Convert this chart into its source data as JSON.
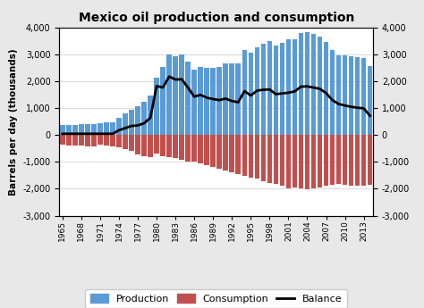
{
  "title": "Mexico oil production and consumption",
  "ylabel": "Barrels per day (thousands)",
  "years": [
    1965,
    1966,
    1967,
    1968,
    1969,
    1970,
    1971,
    1972,
    1973,
    1974,
    1975,
    1976,
    1977,
    1978,
    1979,
    1980,
    1981,
    1982,
    1983,
    1984,
    1985,
    1986,
    1987,
    1988,
    1989,
    1990,
    1991,
    1992,
    1993,
    1994,
    1995,
    1996,
    1997,
    1998,
    1999,
    2000,
    2001,
    2002,
    2003,
    2004,
    2005,
    2006,
    2007,
    2008,
    2009,
    2010,
    2011,
    2012,
    2013,
    2014
  ],
  "production": [
    362,
    375,
    388,
    400,
    413,
    425,
    440,
    460,
    490,
    650,
    800,
    940,
    1085,
    1230,
    1461,
    2129,
    2553,
    3001,
    2930,
    3000,
    2745,
    2433,
    2548,
    2512,
    2521,
    2553,
    2680,
    2668,
    2673,
    3170,
    3065,
    3285,
    3409,
    3500,
    3346,
    3450,
    3560,
    3585,
    3789,
    3825,
    3760,
    3684,
    3467,
    3165,
    2978,
    2958,
    2938,
    2910,
    2875,
    2570
  ],
  "consumption": [
    -362,
    -375,
    -388,
    -400,
    -413,
    -425,
    -360,
    -390,
    -420,
    -460,
    -520,
    -600,
    -710,
    -780,
    -810,
    -700,
    -780,
    -820,
    -860,
    -920,
    -980,
    -1000,
    -1050,
    -1120,
    -1180,
    -1250,
    -1320,
    -1400,
    -1450,
    -1530,
    -1590,
    -1630,
    -1720,
    -1800,
    -1820,
    -1900,
    -1980,
    -1960,
    -1985,
    -2010,
    -1990,
    -1960,
    -1900,
    -1860,
    -1820,
    -1855,
    -1885,
    -1890,
    -1880,
    -1850
  ],
  "balance": [
    50,
    50,
    50,
    50,
    50,
    50,
    50,
    50,
    50,
    180,
    260,
    340,
    360,
    440,
    640,
    1829,
    1773,
    2181,
    2070,
    2080,
    1765,
    1433,
    1498,
    1392,
    1341,
    1303,
    1360,
    1268,
    1223,
    1640,
    1475,
    1655,
    1689,
    1700,
    1526,
    1550,
    1580,
    1625,
    1804,
    1815,
    1770,
    1724,
    1567,
    1305,
    1158,
    1103,
    1053,
    1020,
    995,
    720
  ],
  "production_color": "#5b9bd5",
  "consumption_color": "#c0504d",
  "balance_color": "#000000",
  "bg_color": "#e8e8e8",
  "plot_bg_color": "#ffffff",
  "ylim": [
    -3000,
    4000
  ],
  "yticks": [
    -3000,
    -2000,
    -1000,
    0,
    1000,
    2000,
    3000,
    4000
  ],
  "xtick_years": [
    1965,
    1968,
    1971,
    1974,
    1977,
    1980,
    1983,
    1986,
    1989,
    1992,
    1995,
    1998,
    2001,
    2004,
    2007,
    2010,
    2013
  ],
  "legend_labels": [
    "Production",
    "Consumption",
    "Balance"
  ],
  "figsize": [
    4.74,
    3.45
  ],
  "dpi": 100
}
